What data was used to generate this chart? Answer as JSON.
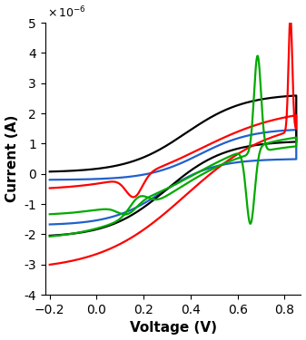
{
  "title": "",
  "xlabel": "Voltage (V)",
  "ylabel": "Current (A)",
  "xlim": [
    -0.22,
    0.87
  ],
  "ylim": [
    -4e-06,
    5e-06
  ],
  "background_color": "#ffffff",
  "colors": {
    "blue": "#2060cc",
    "black": "#000000",
    "green": "#00aa00",
    "red": "#ff0000"
  },
  "linewidth": 1.6
}
